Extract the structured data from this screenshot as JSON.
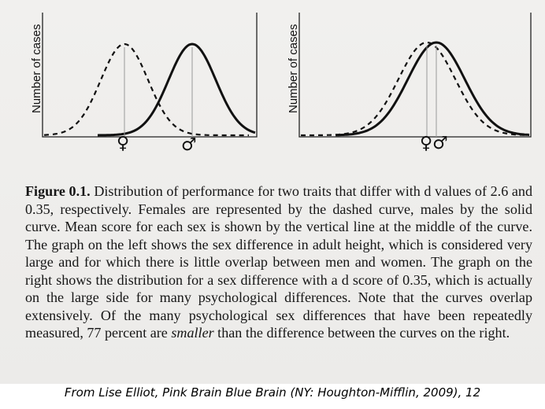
{
  "figure": {
    "y_axis_label": "Number of cases",
    "female_symbol": "♀",
    "male_symbol": "♂",
    "combined_symbol": "♀♂"
  },
  "caption": {
    "label": "Figure 0.1.",
    "text": "Distribution of performance for two traits that differ with d values of 2.6 and 0.35, respectively. Females are represented by the dashed curve, males by the solid curve. Mean score for each sex is shown by the vertical line at the middle of the curve. The graph on the left shows the sex difference in adult height, which is considered very large and for which there is little overlap between men and women. The graph on the right shows the distribution for a sex difference with a d score of 0.35, which is actually on the large side for many psychological differences. Note that the curves overlap extensively. Of the many psychological sex differences that have been repeatedly measured, 77 percent are ",
    "emphasis": "smaller",
    "text_end": " than the difference between the curves on the right."
  },
  "citation": "From Lise Elliot, Pink Brain Blue Brain (NY: Houghton-Mifflin, 2009), 12",
  "colors": {
    "ink": "#111111",
    "page": "#eeedeb"
  }
}
